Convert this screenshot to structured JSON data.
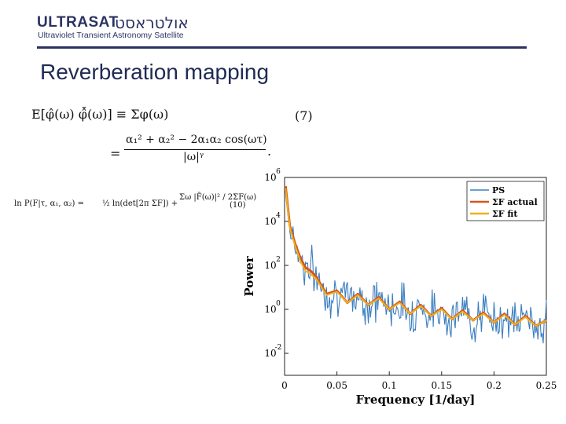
{
  "header": {
    "logo_text": "ULTRASAT",
    "logo_hebrew": "אולטראסט",
    "logo_subtitle": "Ultraviolet Transient Astronomy Satellite"
  },
  "slide": {
    "title": "Reverberation mapping"
  },
  "equations": {
    "eq1_lhs": "E[φ̂(ω) φ̂̄(ω)] ≡ Σφ(ω)",
    "eq1_number": "(7)",
    "eq2_numerator": "α₁² + α₂² − 2α₁α₂ cos(ωτ)",
    "eq2_denominator": "|ω|ᵞ",
    "eq2_prefix": "=",
    "eq2_suffix": ".",
    "eq3_lhs": "ln P(F|τ, α₁, α₂) =",
    "eq3_mid": "½ ln(det[2π ΣF]) +",
    "eq3_sum": "Σω |F̃(ω)|² / 2ΣF(ω)",
    "eq3_number": "(10)"
  },
  "chart_data": {
    "type": "line",
    "xlabel": "Frequency  [1/day]",
    "ylabel": "Power",
    "xlim": [
      0,
      0.25
    ],
    "ylim_log10": [
      -3,
      6
    ],
    "x_ticks": [
      "0",
      "0.05",
      "0.1",
      "0.15",
      "0.2",
      "0.25"
    ],
    "y_ticks": [
      {
        "base": "10",
        "exp": "-2",
        "log": -2
      },
      {
        "base": "10",
        "exp": "0",
        "log": 0
      },
      {
        "base": "10",
        "exp": "2",
        "log": 2
      },
      {
        "base": "10",
        "exp": "4",
        "log": 4
      },
      {
        "base": "10",
        "exp": "6",
        "log": 6
      }
    ],
    "legend": [
      {
        "name": "PS",
        "color": "#3b7ec0"
      },
      {
        "name": "ΣF actual",
        "color": "#d9531e"
      },
      {
        "name": "ΣF fit",
        "color": "#edb120"
      }
    ],
    "legend_position": "top-right",
    "series": [
      {
        "name": "ΣF actual",
        "color": "#d9531e",
        "x": [
          0.001,
          0.005,
          0.01,
          0.015,
          0.02,
          0.025,
          0.03,
          0.04,
          0.05,
          0.06,
          0.07,
          0.08,
          0.09,
          0.1,
          0.11,
          0.12,
          0.13,
          0.14,
          0.15,
          0.16,
          0.17,
          0.18,
          0.19,
          0.2,
          0.21,
          0.22,
          0.23,
          0.24,
          0.25
        ],
        "log10_y": [
          5.6,
          3.8,
          3.0,
          2.35,
          1.9,
          1.75,
          1.5,
          0.7,
          0.85,
          0.3,
          0.7,
          0.2,
          0.55,
          0.0,
          0.35,
          -0.2,
          0.2,
          -0.3,
          0.05,
          -0.45,
          -0.05,
          -0.5,
          -0.15,
          -0.6,
          -0.2,
          -0.7,
          -0.3,
          -0.75,
          -0.5
        ]
      },
      {
        "name": "ΣF fit",
        "color": "#edb120",
        "x": [
          0.001,
          0.005,
          0.01,
          0.015,
          0.02,
          0.025,
          0.03,
          0.04,
          0.05,
          0.06,
          0.07,
          0.08,
          0.09,
          0.1,
          0.11,
          0.12,
          0.13,
          0.14,
          0.15,
          0.16,
          0.17,
          0.18,
          0.19,
          0.2,
          0.21,
          0.22,
          0.23,
          0.24,
          0.25
        ],
        "log10_y": [
          5.5,
          3.7,
          2.9,
          2.2,
          1.75,
          1.6,
          1.4,
          0.65,
          0.8,
          0.3,
          0.65,
          0.2,
          0.5,
          0.0,
          0.3,
          -0.2,
          0.15,
          -0.3,
          0.0,
          -0.45,
          -0.1,
          -0.5,
          -0.2,
          -0.6,
          -0.25,
          -0.7,
          -0.35,
          -0.75,
          -0.5
        ]
      },
      {
        "name": "PS",
        "color": "#3b7ec0",
        "noise_sigma_log10": 0.7,
        "follows": "ΣF actual",
        "points": 250
      }
    ]
  }
}
